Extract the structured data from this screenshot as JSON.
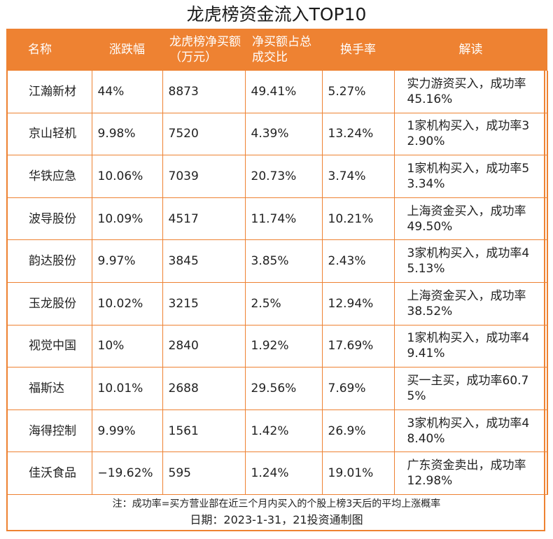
{
  "title": "龙虎榜资金流入TOP10",
  "accent_color": "#ee8232",
  "headers": {
    "name": "名称",
    "change": "涨跌幅",
    "net_buy": "龙虎榜净买额（万元）",
    "ratio": "净买额占总成交比",
    "turnover": "换手率",
    "note": "解读"
  },
  "rows": [
    {
      "name": "江瀚新材",
      "change": "44%",
      "net_buy": "8873",
      "ratio": "49.41%",
      "turnover": "5.27%",
      "note": "实力游资买入，成功率45.16%"
    },
    {
      "name": "京山轻机",
      "change": "9.98%",
      "net_buy": "7520",
      "ratio": "4.39%",
      "turnover": "13.24%",
      "note": "1家机构买入，成功率32.90%"
    },
    {
      "name": "华铁应急",
      "change": "10.06%",
      "net_buy": "7039",
      "ratio": "20.73%",
      "turnover": "3.74%",
      "note": "1家机构买入，成功率53.34%"
    },
    {
      "name": "波导股份",
      "change": "10.09%",
      "net_buy": "4517",
      "ratio": "11.74%",
      "turnover": "10.21%",
      "note": "上海资金买入，成功率49.50%"
    },
    {
      "name": "韵达股份",
      "change": "9.97%",
      "net_buy": "3845",
      "ratio": "3.85%",
      "turnover": "2.43%",
      "note": "3家机构买入，成功率45.13%"
    },
    {
      "name": "玉龙股份",
      "change": "10.02%",
      "net_buy": "3215",
      "ratio": "2.5%",
      "turnover": "12.94%",
      "note": "上海资金买入，成功率38.52%"
    },
    {
      "name": "视觉中国",
      "change": "10%",
      "net_buy": "2840",
      "ratio": "1.92%",
      "turnover": "17.69%",
      "note": "1家机构买入，成功率49.41%"
    },
    {
      "name": "福斯达",
      "change": "10.01%",
      "net_buy": "2688",
      "ratio": "29.56%",
      "turnover": "7.69%",
      "note": "买一主买，成功率60.75%"
    },
    {
      "name": "海得控制",
      "change": "9.99%",
      "net_buy": "1561",
      "ratio": "1.42%",
      "turnover": "26.9%",
      "note": "3家机构买入，成功率48.40%"
    },
    {
      "name": "佳沃食品",
      "change": "−19.62%",
      "net_buy": "595",
      "ratio": "1.24%",
      "turnover": "19.01%",
      "note": "广东资金卖出，成功率12.98%"
    }
  ],
  "footer": {
    "note": "注：成功率=买方营业部在近三个月内买入的个股上榜3天后的平均上涨概率",
    "date": "日期：2023-1-31，21投资通制图"
  }
}
